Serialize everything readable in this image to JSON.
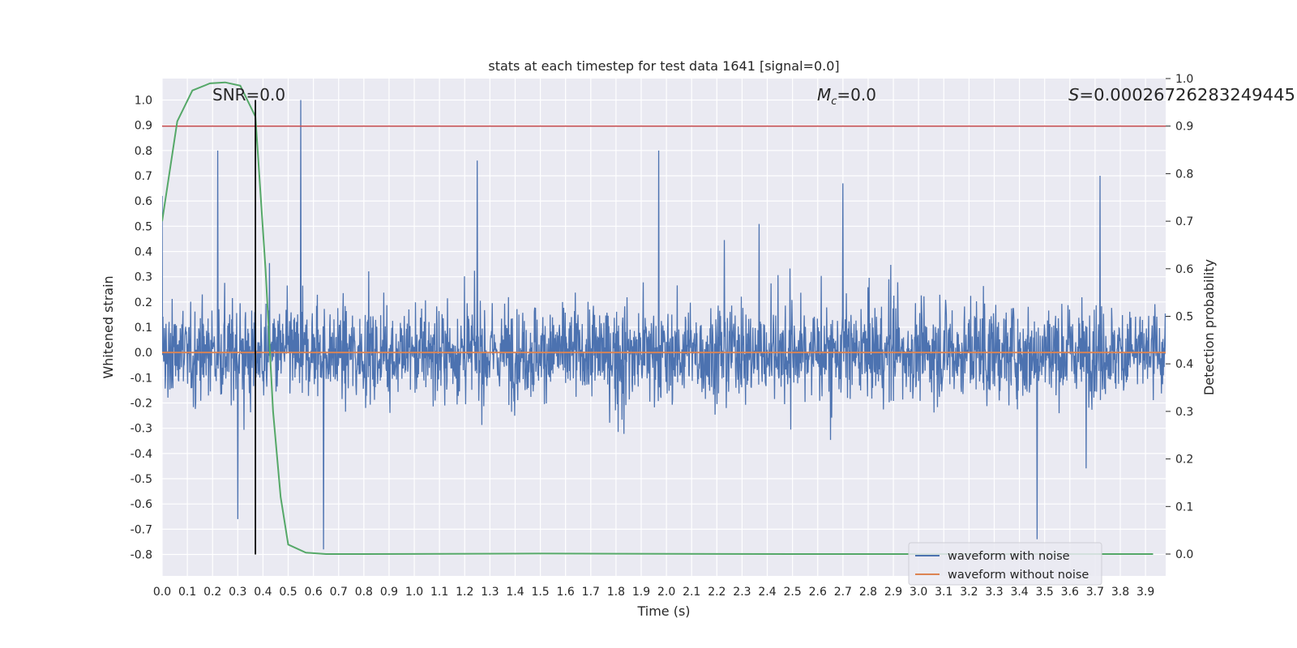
{
  "chart_data": {
    "type": "line",
    "title": "stats at each timestep for test data 1641 [signal=0.0]",
    "xlabel": "Time (s)",
    "ylabel": "Whitened strain",
    "y2label": "Detection probability",
    "xlim": [
      0.0,
      3.98
    ],
    "ylim": [
      -0.885,
      1.085
    ],
    "y2lim": [
      -0.046,
      1.0
    ],
    "x_ticks": [
      "0.0",
      "0.1",
      "0.2",
      "0.3",
      "0.4",
      "0.5",
      "0.6",
      "0.7",
      "0.8",
      "0.9",
      "1.0",
      "1.1",
      "1.2",
      "1.3",
      "1.4",
      "1.5",
      "1.6",
      "1.7",
      "1.8",
      "1.9",
      "2.0",
      "2.1",
      "2.2",
      "2.3",
      "2.4",
      "2.5",
      "2.6",
      "2.7",
      "2.8",
      "2.9",
      "3.0",
      "3.1",
      "3.2",
      "3.3",
      "3.4",
      "3.5",
      "3.6",
      "3.7",
      "3.8",
      "3.9"
    ],
    "y_ticks": [
      "1.0",
      "0.9",
      "0.8",
      "0.7",
      "0.6",
      "0.5",
      "0.4",
      "0.3",
      "0.2",
      "0.1",
      "0.0",
      "-0.1",
      "-0.2",
      "-0.3",
      "-0.4",
      "-0.5",
      "-0.6",
      "-0.7",
      "-0.8"
    ],
    "y2_ticks": [
      "1.0",
      "0.9",
      "0.8",
      "0.7",
      "0.6",
      "0.5",
      "0.4",
      "0.3",
      "0.2",
      "0.1",
      "0.0"
    ],
    "grid": true,
    "legend_placement": "lower-right",
    "annotations": {
      "snr": "SNR=0.0",
      "mc_symbol": "M",
      "mc_sub": "c",
      "mc_value": "=0.0",
      "s_symbol": "S",
      "s_value": "=0.00026726283249445"
    },
    "series": [
      {
        "name": "waveform with noise",
        "color": "#4c72b0",
        "description_values": "dense noise, envelope roughly ±0.4 with spikes; max ≈ 1.0 near t=0.55, min ≈ -0.78 near t=0.64",
        "peaks": [
          {
            "x": 0.0,
            "y": 0.62
          },
          {
            "x": 0.22,
            "y": 0.8
          },
          {
            "x": 0.55,
            "y": 1.0
          },
          {
            "x": 0.64,
            "y": -0.78
          },
          {
            "x": 0.3,
            "y": -0.66
          },
          {
            "x": 1.25,
            "y": 0.76
          },
          {
            "x": 1.97,
            "y": 0.8
          },
          {
            "x": 2.7,
            "y": 0.67
          },
          {
            "x": 3.47,
            "y": -0.74
          },
          {
            "x": 3.72,
            "y": 0.7
          }
        ]
      },
      {
        "name": "waveform without noise",
        "color": "#dd8452",
        "x": [
          0.0,
          3.98
        ],
        "y": [
          0.0,
          0.0
        ]
      },
      {
        "name": "",
        "color": "#55a868",
        "axis": "right",
        "x": [
          0.0,
          0.06,
          0.12,
          0.19,
          0.25,
          0.31,
          0.37,
          0.41,
          0.44,
          0.47,
          0.5,
          0.57,
          0.65,
          0.8,
          1.5,
          2.5,
          3.5,
          3.93
        ],
        "y": [
          0.7,
          0.91,
          0.975,
          0.99,
          0.992,
          0.985,
          0.92,
          0.6,
          0.3,
          0.12,
          0.02,
          0.003,
          0.0,
          0.0,
          0.001,
          0.0,
          0.0,
          0.0
        ]
      }
    ],
    "threshold": {
      "axis": "right",
      "value": 0.9,
      "color": "#c44e52"
    },
    "marker_line": {
      "x": 0.37,
      "y_from": -0.8,
      "y_to": 1.0,
      "color": "#000000"
    }
  }
}
